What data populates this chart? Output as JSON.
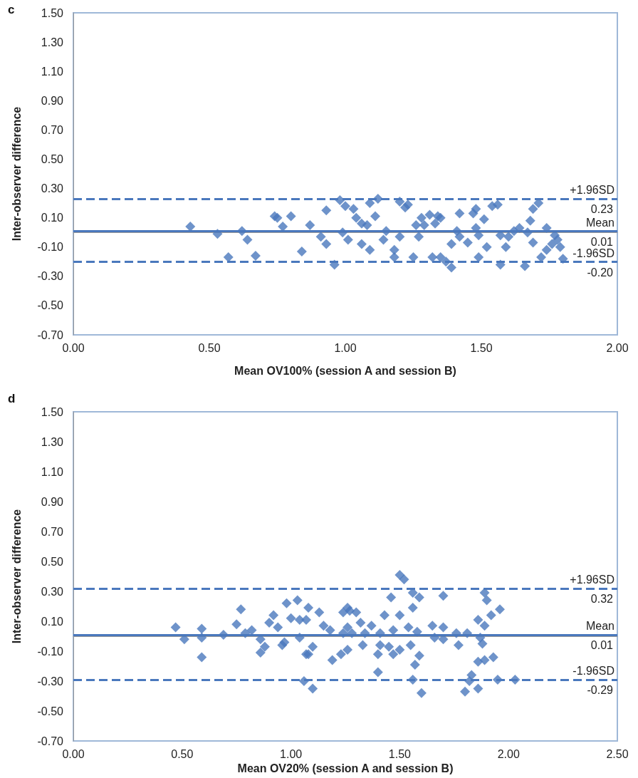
{
  "chart_data": [
    {
      "type": "scatter",
      "title": "c",
      "xlabel": "Mean OV100% (session A and session B)",
      "ylabel": "Inter-observer difference",
      "marker": "diamond",
      "xlim": [
        0,
        2
      ],
      "xticks": [
        {
          "value": 0,
          "label": "0.00"
        },
        {
          "value": 0.5,
          "label": "0.50"
        },
        {
          "value": 1,
          "label": "1.00"
        },
        {
          "value": 1.5,
          "label": "1.50"
        },
        {
          "value": 2,
          "label": "2.00"
        }
      ],
      "ylim": [
        -0.7,
        1.5
      ],
      "yticks": [
        {
          "value": -0.7,
          "label": "-0.70"
        },
        {
          "value": -0.5,
          "label": "-0.50"
        },
        {
          "value": -0.3,
          "label": "-0.30"
        },
        {
          "value": -0.1,
          "label": "-0.10"
        },
        {
          "value": 0.1,
          "label": "0.10"
        },
        {
          "value": 0.3,
          "label": "0.30"
        },
        {
          "value": 0.5,
          "label": "0.50"
        },
        {
          "value": 0.7,
          "label": "0.70"
        },
        {
          "value": 0.9,
          "label": "0.90"
        },
        {
          "value": 1.1,
          "label": "1.10"
        },
        {
          "value": 1.3,
          "label": "1.30"
        },
        {
          "value": 1.5,
          "label": "1.50"
        }
      ],
      "series": [
        {
          "color": "#4a78bd",
          "x": [
            0.43,
            0.53,
            0.62,
            0.64,
            0.57,
            0.67,
            0.74,
            0.75,
            0.8,
            0.77,
            0.93,
            0.87,
            0.84,
            0.91,
            0.93,
            0.96,
            0.98,
            1.0,
            1.03,
            0.99,
            1.01,
            1.06,
            1.04,
            1.06,
            1.08,
            1.09,
            1.12,
            1.11,
            1.09,
            1.14,
            1.15,
            1.18,
            1.18,
            1.2,
            1.22,
            1.23,
            1.2,
            1.25,
            1.27,
            1.26,
            1.28,
            1.31,
            1.34,
            1.35,
            1.33,
            1.29,
            1.32,
            1.35,
            1.37,
            1.39,
            1.39,
            1.41,
            1.42,
            1.42,
            1.45,
            1.47,
            1.48,
            1.48,
            1.49,
            1.49,
            1.51,
            1.52,
            1.54,
            1.56,
            1.57,
            1.57,
            1.59,
            1.6,
            1.62,
            1.64,
            1.66,
            1.67,
            1.68,
            1.69,
            1.71,
            1.69,
            1.72,
            1.74,
            1.74,
            1.77,
            1.76,
            1.79,
            1.8,
            1.78
          ],
          "values": [
            0.04,
            -0.01,
            0.01,
            -0.05,
            -0.17,
            -0.16,
            0.11,
            0.1,
            0.11,
            0.04,
            0.15,
            0.05,
            -0.13,
            -0.03,
            -0.08,
            -0.22,
            0.22,
            0.18,
            0.16,
            0.0,
            -0.05,
            -0.08,
            0.1,
            0.06,
            0.05,
            0.2,
            0.23,
            0.11,
            -0.12,
            -0.05,
            0.01,
            -0.12,
            -0.17,
            0.21,
            0.17,
            0.19,
            -0.03,
            -0.17,
            -0.03,
            0.05,
            0.1,
            0.12,
            0.11,
            0.1,
            0.06,
            0.05,
            -0.17,
            -0.17,
            -0.2,
            -0.08,
            -0.24,
            0.01,
            0.13,
            -0.03,
            -0.07,
            0.13,
            0.03,
            0.16,
            -0.02,
            -0.17,
            0.09,
            -0.1,
            0.18,
            0.19,
            -0.02,
            -0.22,
            -0.1,
            -0.03,
            0.01,
            0.03,
            -0.23,
            0.0,
            0.08,
            0.16,
            0.2,
            -0.07,
            -0.17,
            0.03,
            -0.12,
            -0.02,
            -0.08,
            -0.1,
            -0.18,
            -0.05
          ]
        }
      ],
      "ref_lines": [
        {
          "axis": "y",
          "value": 0.23,
          "label": "+1.96SD",
          "color": "#4a78bd",
          "line_style": "dashed"
        },
        {
          "axis": "y",
          "value": 0.01,
          "label": "Mean",
          "color": "#4a78bd",
          "line_style": "solid"
        },
        {
          "axis": "y",
          "value": -0.2,
          "label": "-1.96SD",
          "color": "#4a78bd",
          "line_style": "dashed"
        }
      ],
      "annotations": [
        {
          "text": "0.23",
          "y": 0.23
        },
        {
          "text": "0.01",
          "y": 0.01
        },
        {
          "text": "-0.20",
          "y": -0.2
        }
      ]
    },
    {
      "type": "scatter",
      "title": "d",
      "xlabel": "Mean OV20% (session A and session B)",
      "ylabel": "Inter-observer difference",
      "marker": "diamond",
      "xlim": [
        0,
        2.5
      ],
      "xticks": [
        {
          "value": 0,
          "label": "0.00"
        },
        {
          "value": 0.5,
          "label": "0.50"
        },
        {
          "value": 1,
          "label": "1.00"
        },
        {
          "value": 1.5,
          "label": "1.50"
        },
        {
          "value": 2,
          "label": "2.00"
        },
        {
          "value": 2.5,
          "label": "2.50"
        }
      ],
      "ylim": [
        -0.7,
        1.5
      ],
      "yticks": [
        {
          "value": -0.7,
          "label": "-0.70"
        },
        {
          "value": -0.5,
          "label": "-0.50"
        },
        {
          "value": -0.3,
          "label": "-0.30"
        },
        {
          "value": -0.1,
          "label": "-0.10"
        },
        {
          "value": 0.1,
          "label": "0.10"
        },
        {
          "value": 0.3,
          "label": "0.30"
        },
        {
          "value": 0.5,
          "label": "0.50"
        },
        {
          "value": 0.7,
          "label": "0.70"
        },
        {
          "value": 0.9,
          "label": "0.90"
        },
        {
          "value": 1.1,
          "label": "1.10"
        },
        {
          "value": 1.3,
          "label": "1.30"
        },
        {
          "value": 1.5,
          "label": "1.50"
        }
      ],
      "series": [
        {
          "color": "#4a78bd",
          "x": [
            0.47,
            0.51,
            0.59,
            0.59,
            0.59,
            0.69,
            0.77,
            0.75,
            0.79,
            0.82,
            0.86,
            0.86,
            0.88,
            0.9,
            0.92,
            0.94,
            0.97,
            0.96,
            0.98,
            1.03,
            1.0,
            1.04,
            1.04,
            1.08,
            1.07,
            1.08,
            1.1,
            1.06,
            1.1,
            1.13,
            1.15,
            1.18,
            1.19,
            1.23,
            1.24,
            1.26,
            1.24,
            1.07,
            1.5,
            1.52,
            1.46,
            1.56,
            1.59,
            1.56,
            1.7,
            1.89,
            1.9,
            1.96,
            1.92,
            1.86,
            1.89,
            1.43,
            1.5,
            1.27,
            1.3,
            1.32,
            1.37,
            1.26,
            1.28,
            1.34,
            1.41,
            1.47,
            1.54,
            1.58,
            1.65,
            1.7,
            1.66,
            1.7,
            1.76,
            1.77,
            1.81,
            1.87,
            1.88,
            1.26,
            1.33,
            1.41,
            1.4,
            1.45,
            1.47,
            1.5,
            1.55,
            1.59,
            1.57,
            1.4,
            1.56,
            1.6,
            1.83,
            1.82,
            1.8,
            1.86,
            1.86,
            1.89,
            1.93,
            1.95,
            2.03
          ],
          "values": [
            0.06,
            -0.02,
            0.05,
            -0.01,
            -0.14,
            0.01,
            0.18,
            0.08,
            0.02,
            0.04,
            -0.02,
            -0.11,
            -0.07,
            0.09,
            0.14,
            0.06,
            -0.04,
            -0.06,
            0.22,
            0.24,
            0.12,
            0.11,
            -0.01,
            0.19,
            0.11,
            -0.12,
            -0.07,
            -0.3,
            -0.35,
            0.16,
            0.07,
            0.04,
            -0.16,
            -0.12,
            0.16,
            0.19,
            0.02,
            -0.12,
            0.41,
            0.38,
            0.26,
            0.29,
            0.26,
            0.19,
            0.27,
            0.29,
            0.24,
            0.18,
            0.14,
            0.11,
            0.07,
            0.14,
            0.14,
            0.17,
            0.16,
            0.09,
            0.07,
            0.06,
            0.02,
            0.02,
            0.02,
            0.04,
            0.06,
            0.03,
            0.07,
            0.06,
            -0.01,
            -0.02,
            0.02,
            -0.06,
            0.02,
            -0.01,
            -0.05,
            -0.09,
            -0.06,
            -0.06,
            -0.12,
            -0.07,
            -0.12,
            -0.09,
            -0.06,
            -0.13,
            -0.19,
            -0.24,
            -0.29,
            -0.38,
            -0.26,
            -0.3,
            -0.37,
            -0.35,
            -0.17,
            -0.16,
            -0.14,
            -0.29,
            -0.29
          ]
        }
      ],
      "ref_lines": [
        {
          "axis": "y",
          "value": 0.32,
          "label": "+1.96SD",
          "color": "#4a78bd",
          "line_style": "dashed"
        },
        {
          "axis": "y",
          "value": 0.01,
          "label": "Mean",
          "color": "#4a78bd",
          "line_style": "solid"
        },
        {
          "axis": "y",
          "value": -0.29,
          "label": "-1.96SD",
          "color": "#4a78bd",
          "line_style": "dashed"
        }
      ],
      "annotations": [
        {
          "text": "0.32",
          "y": 0.32
        },
        {
          "text": "0.01",
          "y": 0.01
        },
        {
          "text": "-0.29",
          "y": -0.29
        }
      ]
    }
  ]
}
